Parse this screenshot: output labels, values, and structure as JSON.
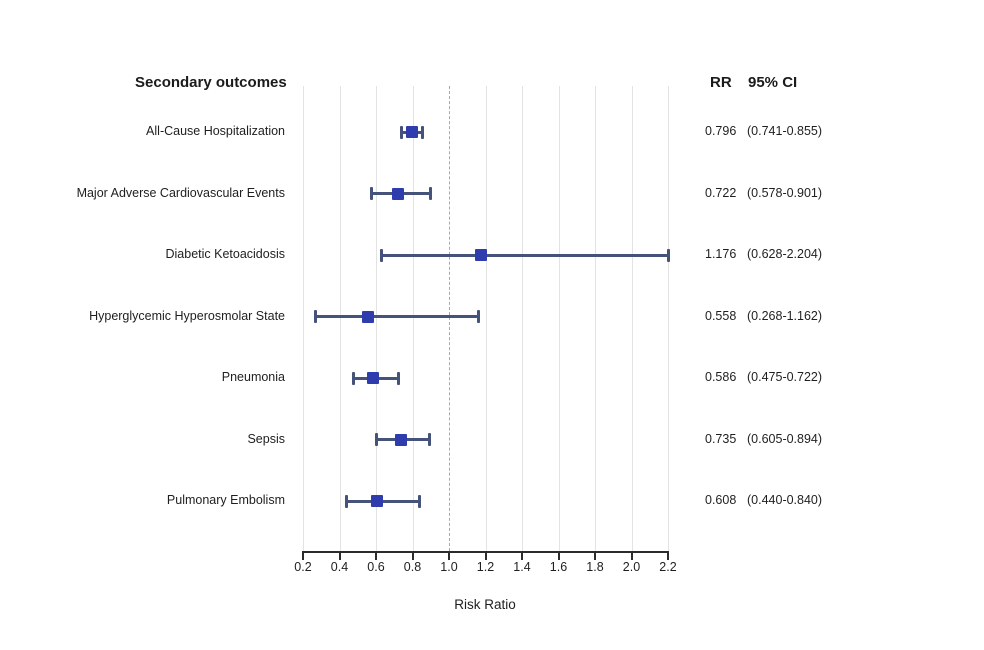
{
  "header": {
    "outcomes_label": "Secondary outcomes",
    "rr_label": "RR",
    "ci_label": "95% CI"
  },
  "chart_data": {
    "type": "forest",
    "title": "",
    "xlabel": "Risk Ratio",
    "xlim": [
      0.2,
      2.2
    ],
    "reference_line": 1.0,
    "grid": true,
    "x_ticks": [
      0.2,
      0.4,
      0.6,
      0.8,
      1.0,
      1.2,
      1.4,
      1.6,
      1.8,
      2.0,
      2.2
    ],
    "x_tick_labels": [
      "0.2",
      "0.4",
      "0.6",
      "0.8",
      "1.0",
      "1.2",
      "1.4",
      "1.6",
      "1.8",
      "2.0",
      "2.2"
    ],
    "rows": [
      {
        "label": "All-Cause Hospitalization",
        "rr": 0.796,
        "ci_low": 0.741,
        "ci_high": 0.855,
        "rr_text": "0.796",
        "ci_text": "(0.741-0.855)"
      },
      {
        "label": "Major Adverse Cardiovascular Events",
        "rr": 0.722,
        "ci_low": 0.578,
        "ci_high": 0.901,
        "rr_text": "0.722",
        "ci_text": "(0.578-0.901)"
      },
      {
        "label": "Diabetic Ketoacidosis",
        "rr": 1.176,
        "ci_low": 0.628,
        "ci_high": 2.204,
        "rr_text": "1.176",
        "ci_text": "(0.628-2.204)"
      },
      {
        "label": "Hyperglycemic Hyperosmolar State",
        "rr": 0.558,
        "ci_low": 0.268,
        "ci_high": 1.162,
        "rr_text": "0.558",
        "ci_text": "(0.268-1.162)"
      },
      {
        "label": "Pneumonia",
        "rr": 0.586,
        "ci_low": 0.475,
        "ci_high": 0.722,
        "rr_text": "0.586",
        "ci_text": "(0.475-0.722)"
      },
      {
        "label": "Sepsis",
        "rr": 0.735,
        "ci_low": 0.605,
        "ci_high": 0.894,
        "rr_text": "0.735",
        "ci_text": "(0.605-0.894)"
      },
      {
        "label": "Pulmonary Embolism",
        "rr": 0.608,
        "ci_low": 0.44,
        "ci_high": 0.84,
        "rr_text": "0.608",
        "ci_text": "(0.440-0.840)"
      }
    ]
  },
  "colors": {
    "marker": "#2e3cae",
    "whisker": "#45527a",
    "grid": "#e3e3e3",
    "reference": "#a8a8a8",
    "axis": "#2b2b2b",
    "text": "#1f1f1f"
  }
}
